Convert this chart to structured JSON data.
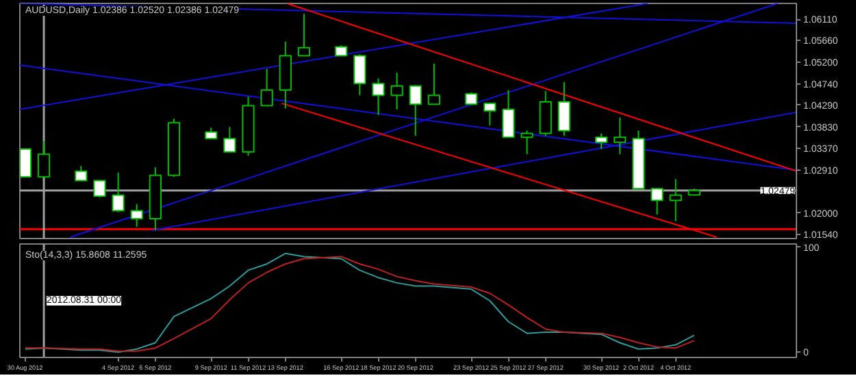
{
  "chart_data": [
    {
      "type": "candlestick",
      "title": "AUDUSD,Daily 1.02386 1.02520 1.02386 1.02479",
      "x": [
        "2012-08-30",
        "2012-08-31",
        "2012-09-02",
        "2012-09-03",
        "2012-09-04",
        "2012-09-05",
        "2012-09-06",
        "2012-09-07",
        "2012-09-09",
        "2012-09-10",
        "2012-09-11",
        "2012-09-12",
        "2012-09-13",
        "2012-09-14",
        "2012-09-16",
        "2012-09-17",
        "2012-09-18",
        "2012-09-19",
        "2012-09-20",
        "2012-09-21",
        "2012-09-23",
        "2012-09-24",
        "2012-09-25",
        "2012-09-26",
        "2012-09-27",
        "2012-09-28",
        "2012-09-30",
        "2012-10-01",
        "2012-10-02",
        "2012-10-03",
        "2012-10-04",
        "2012-10-05"
      ],
      "ohlc": [
        [
          1.0336,
          1.0336,
          1.0277,
          1.0277
        ],
        [
          1.0277,
          1.0353,
          1.0277,
          1.0325
        ],
        [
          1.0289,
          1.03,
          1.0269,
          1.0269
        ],
        [
          1.0269,
          1.0269,
          1.0233,
          1.0236
        ],
        [
          1.0238,
          1.0286,
          1.0202,
          1.0205
        ],
        [
          1.0205,
          1.0219,
          1.0171,
          1.0188
        ],
        [
          1.0188,
          1.0297,
          1.0163,
          1.028
        ],
        [
          1.028,
          1.04,
          1.0277,
          1.0392
        ],
        [
          1.0372,
          1.0381,
          1.0358,
          1.0358
        ],
        [
          1.0358,
          1.0383,
          1.033,
          1.033
        ],
        [
          1.033,
          1.0447,
          1.0322,
          1.0428
        ],
        [
          1.0428,
          1.0506,
          1.0428,
          1.0461
        ],
        [
          1.0461,
          1.0564,
          1.0422,
          1.0534
        ],
        [
          1.0534,
          1.0623,
          1.0534,
          1.0551
        ],
        [
          1.0553,
          1.0556,
          1.0534,
          1.0534
        ],
        [
          1.0534,
          1.0537,
          1.045,
          1.0475
        ],
        [
          1.0475,
          1.0486,
          1.0408,
          1.045
        ],
        [
          1.045,
          1.0498,
          1.042,
          1.047
        ],
        [
          1.047,
          1.0472,
          1.0364,
          1.0431
        ],
        [
          1.0431,
          1.0517,
          1.0431,
          1.045
        ],
        [
          1.0453,
          1.0456,
          1.0431,
          1.0431
        ],
        [
          1.0433,
          1.0433,
          1.0386,
          1.0417
        ],
        [
          1.042,
          1.0461,
          1.0361,
          1.0361
        ],
        [
          1.0361,
          1.0375,
          1.0325,
          1.0369
        ],
        [
          1.0369,
          1.0459,
          1.0364,
          1.0436
        ],
        [
          1.0436,
          1.0478,
          1.0364,
          1.0375
        ],
        [
          1.0361,
          1.0369,
          1.0336,
          1.035
        ],
        [
          1.035,
          1.0403,
          1.0325,
          1.0361
        ],
        [
          1.0358,
          1.0375,
          1.0252,
          1.0252
        ],
        [
          1.0252,
          1.0252,
          1.0197,
          1.0227
        ],
        [
          1.0227,
          1.0272,
          1.0183,
          1.0238
        ],
        [
          1.02386,
          1.0252,
          1.02386,
          1.02479
        ]
      ],
      "color": "#00c000",
      "colors": [
        "#ffffff",
        "#000000",
        "#ffffff",
        "#ffffff",
        "#ffffff",
        "#ffffff",
        "#000000",
        "#000000",
        "#ffffff",
        "#ffffff",
        "#000000",
        "#000000",
        "#000000",
        "#000000",
        "#ffffff",
        "#ffffff",
        "#ffffff",
        "#000000",
        "#ffffff",
        "#000000",
        "#ffffff",
        "#ffffff",
        "#ffffff",
        "#000000",
        "#000000",
        "#ffffff",
        "#ffffff",
        "#000000",
        "#ffffff",
        "#ffffff",
        "#000000",
        "#000000"
      ],
      "series": [
        {
          "type": "line",
          "color": "#1010e0",
          "x": [
            "2012-08-29T17:00",
            "2012-10-10T12:00"
          ],
          "values": [
            1.0645,
            1.0603
          ]
        },
        {
          "type": "line",
          "color": "#1010e0",
          "x": [
            "2012-08-29T17:00",
            "2012-10-10T12:00"
          ],
          "values": [
            1.0514,
            1.0291
          ]
        },
        {
          "type": "line",
          "color": "#1010e0",
          "x": [
            "2012-08-29T17:00",
            "2012-10-02T12:00"
          ],
          "values": [
            1.042,
            1.0645
          ]
        },
        {
          "type": "line",
          "color": "#1010e0",
          "x": [
            "2012-09-01T10:00",
            "2012-10-09T12:00"
          ],
          "values": [
            1.0149,
            1.0645
          ]
        },
        {
          "type": "line",
          "color": "#1010e0",
          "x": [
            "2012-09-05T19:00",
            "2012-10-10T12:00"
          ],
          "values": [
            1.0163,
            1.0414
          ]
        },
        {
          "type": "line",
          "color": "#ff0000",
          "x": [
            "2012-09-13T02:00",
            "2012-10-10T12:00"
          ],
          "values": [
            1.0645,
            1.0289
          ]
        },
        {
          "type": "line",
          "color": "#ff0000",
          "x": [
            "2012-09-12T19:00",
            "2012-10-06T05:00"
          ],
          "values": [
            1.0433,
            1.0149
          ]
        }
      ],
      "xlim": [
        "2012-08-29T17:00",
        "2012-10-10T12:00"
      ],
      "ylim": [
        1.0146,
        1.0645
      ],
      "yticks": [
        {
          "value": 1.0611,
          "label": "1.06110"
        },
        {
          "value": 1.0566,
          "label": "1.05660"
        },
        {
          "value": 1.052,
          "label": "1.05200"
        },
        {
          "value": 1.0474,
          "label": "1.04740"
        },
        {
          "value": 1.0429,
          "label": "1.04290"
        },
        {
          "value": 1.0383,
          "label": "1.03830"
        },
        {
          "value": 1.0337,
          "label": "1.03370"
        },
        {
          "value": 1.0291,
          "label": "1.02910"
        },
        {
          "value": 1.02,
          "label": "1.02000"
        },
        {
          "value": 1.0154,
          "label": "1.01540"
        }
      ],
      "tick_labels": "y",
      "ref_lines": [
        {
          "axis": "y",
          "value": 1.02479,
          "label": "1.02479",
          "color": "#a0a0a0"
        },
        {
          "axis": "y",
          "value": 1.0166,
          "label": null,
          "color": "#ff0000"
        },
        {
          "axis": "x",
          "value": "2012-08-31",
          "label": null,
          "color": "#a0a0a0"
        }
      ]
    },
    {
      "type": "line",
      "title": "Sto(14,3,3) 15.8608 11.2595",
      "x": [
        "2012-08-30",
        "2012-08-31",
        "2012-09-02",
        "2012-09-03",
        "2012-09-04",
        "2012-09-05",
        "2012-09-06",
        "2012-09-07",
        "2012-09-09",
        "2012-09-10",
        "2012-09-11",
        "2012-09-12",
        "2012-09-13",
        "2012-09-14",
        "2012-09-16",
        "2012-09-17",
        "2012-09-18",
        "2012-09-19",
        "2012-09-20",
        "2012-09-21",
        "2012-09-23",
        "2012-09-24",
        "2012-09-25",
        "2012-09-26",
        "2012-09-27",
        "2012-09-28",
        "2012-09-30",
        "2012-10-01",
        "2012-10-02",
        "2012-10-03",
        "2012-10-04",
        "2012-10-05"
      ],
      "series": [
        {
          "color": "#2a9d9d",
          "values": [
            3,
            4,
            2,
            2,
            0,
            3,
            9,
            34,
            51,
            63,
            78,
            84,
            94,
            91,
            89,
            78,
            71,
            66,
            63,
            63,
            60,
            49,
            29,
            18,
            19,
            19,
            17,
            9,
            3,
            4,
            7,
            16
          ]
        },
        {
          "color": "#c02020",
          "values": [
            4,
            4,
            3,
            3,
            1,
            1,
            4,
            13,
            32,
            50,
            66,
            76,
            84,
            89,
            91,
            84,
            79,
            72,
            68,
            65,
            62,
            56,
            45,
            33,
            22,
            19,
            18,
            14,
            9,
            5,
            4,
            11
          ]
        }
      ],
      "xlim": [
        "2012-08-29T17:00",
        "2012-10-10T12:00"
      ],
      "xticks": [
        {
          "value": "2012-08-30",
          "label": "30 Aug 2012"
        },
        {
          "value": "2012-09-04",
          "label": "4 Sep 2012"
        },
        {
          "value": "2012-09-06",
          "label": "6 Sep 2012"
        },
        {
          "value": "2012-09-09",
          "label": "9 Sep 2012"
        },
        {
          "value": "2012-09-11",
          "label": "11 Sep 2012"
        },
        {
          "value": "2012-09-13",
          "label": "13 Sep 2012"
        },
        {
          "value": "2012-09-16",
          "label": "16 Sep 2012"
        },
        {
          "value": "2012-09-18",
          "label": "18 Sep 2012"
        },
        {
          "value": "2012-09-20",
          "label": "20 Sep 2012"
        },
        {
          "value": "2012-09-23",
          "label": "23 Sep 2012"
        },
        {
          "value": "2012-09-25",
          "label": "25 Sep 2012"
        },
        {
          "value": "2012-09-27",
          "label": "27 Sep 2012"
        },
        {
          "value": "2012-09-30",
          "label": "30 Sep 2012"
        },
        {
          "value": "2012-10-02",
          "label": "2 Oct 2012"
        },
        {
          "value": "2012-10-04",
          "label": "4 Oct 2012"
        }
      ],
      "ylim": [
        -5,
        103
      ],
      "yticks": [
        0,
        100
      ],
      "ref_lines": [
        {
          "axis": "x",
          "value": "2012-08-31",
          "label": "2012.08.31 00:00",
          "color": "#a0a0a0"
        }
      ]
    }
  ]
}
